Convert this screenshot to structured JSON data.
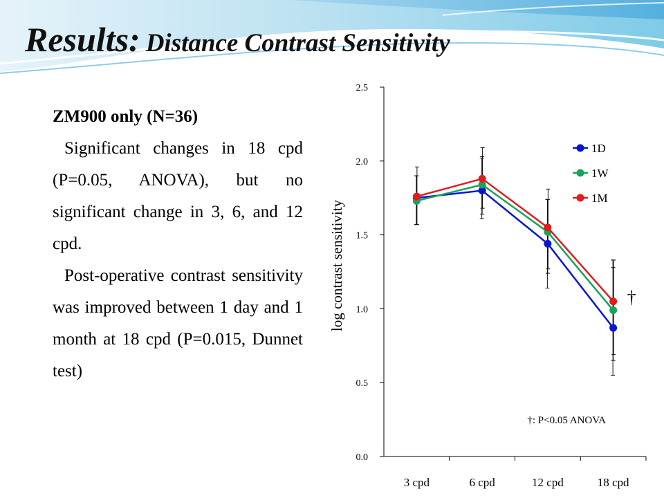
{
  "slide": {
    "title_main": "Results:",
    "title_sub": "Distance Contrast Sensitivity",
    "subhead": "ZM900 only (N=36)",
    "paragraph1": "Significant changes in 18 cpd (P=0.05, ANOVA), but no significant change in 3, 6, and 12 cpd.",
    "paragraph2": "Post-operative contrast sensitivity was improved between 1 day and 1 month at 18 cpd (P=0.015, Dunnet test)"
  },
  "chart_data": {
    "type": "line",
    "title": "",
    "xlabel": "",
    "ylabel": "log contrast sensitivity",
    "categories": [
      "3 cpd",
      "6 cpd",
      "12 cpd",
      "18 cpd"
    ],
    "ylim": [
      0,
      2.5
    ],
    "yticks": [
      "0.0",
      "0.5",
      "1.0",
      "1.5",
      "2.0",
      "2.5"
    ],
    "grid": false,
    "legend_position": "top-right",
    "series": [
      {
        "name": "1D",
        "color": "#0a14d2",
        "values": [
          1.75,
          1.8,
          1.44,
          0.87
        ],
        "err_low": [
          0.18,
          0.19,
          0.3,
          0.32
        ],
        "err_high": [
          0.15,
          0.22,
          0.3,
          0.46
        ]
      },
      {
        "name": "1W",
        "color": "#18a35a",
        "values": [
          1.73,
          1.84,
          1.52,
          0.99
        ],
        "err_low": [
          0.16,
          0.2,
          0.28,
          0.34
        ],
        "err_high": [
          0.17,
          0.19,
          0.22,
          0.29
        ]
      },
      {
        "name": "1M",
        "color": "#e01c1c",
        "values": [
          1.76,
          1.88,
          1.55,
          1.05
        ],
        "err_low": [
          0.19,
          0.2,
          0.28,
          0.36
        ],
        "err_high": [
          0.2,
          0.21,
          0.26,
          0.28
        ]
      }
    ],
    "annotations": {
      "marker": "†",
      "marker_category": "18 cpd",
      "footnote": "†: P<0.05 ANOVA"
    }
  }
}
